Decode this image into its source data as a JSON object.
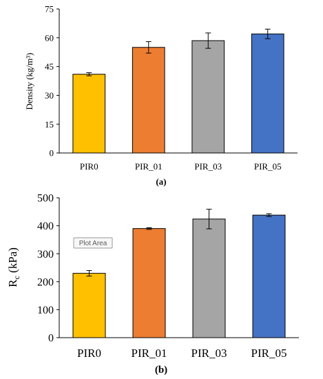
{
  "chart_data": [
    {
      "type": "bar",
      "categories": [
        "PIR0",
        "PIR_01",
        "PIR_03",
        "PIR_05"
      ],
      "values": [
        41,
        55,
        58.5,
        62
      ],
      "errors": [
        0.8,
        3,
        4,
        2.5
      ],
      "ylabel": "Density (kg/m³)",
      "ylim": [
        0,
        75
      ],
      "yticks": [
        0,
        15,
        30,
        45,
        60,
        75
      ],
      "caption": "(a)",
      "colors": [
        "#FFC000",
        "#ED7D31",
        "#A5A5A5",
        "#4472C4"
      ],
      "grid": false
    },
    {
      "type": "bar",
      "categories": [
        "PIR0",
        "PIR_01",
        "PIR_03",
        "PIR_05"
      ],
      "values": [
        230,
        390,
        424,
        438
      ],
      "errors": [
        10,
        3,
        35,
        5
      ],
      "ylabel_main": "R",
      "ylabel_sub": "c",
      "ylabel_unit": " (kPa)",
      "ylim": [
        0,
        500
      ],
      "yticks": [
        0,
        100,
        200,
        300,
        400,
        500
      ],
      "caption": "(b)",
      "tooltip": "Plot Area",
      "colors": [
        "#FFC000",
        "#ED7D31",
        "#A5A5A5",
        "#4472C4"
      ],
      "grid": false
    }
  ]
}
